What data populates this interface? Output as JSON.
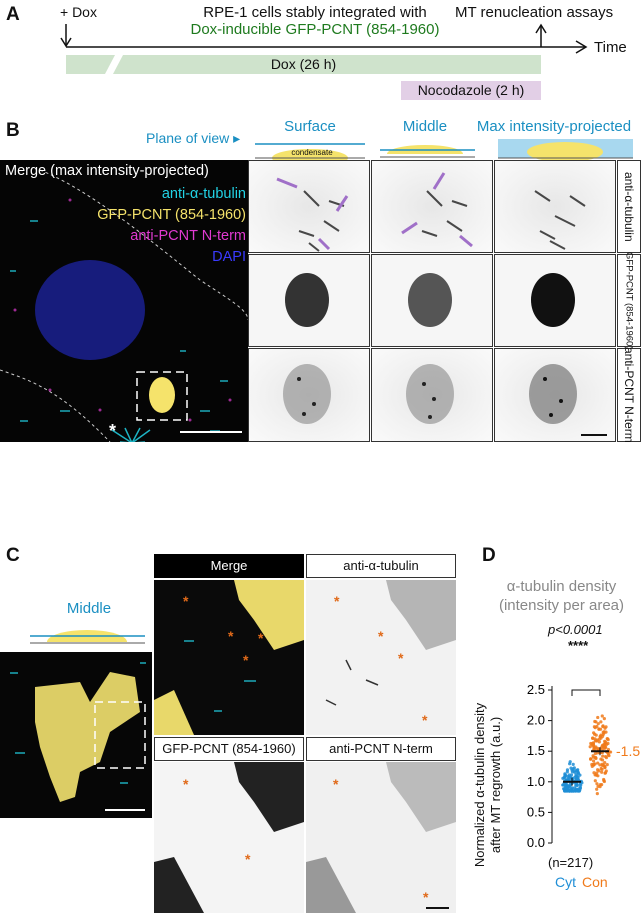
{
  "panelA": {
    "label": "A",
    "dox_plus": "+ Dox",
    "title_line1": "RPE-1 cells stably integrated with",
    "title_line2": "Dox-inducible GFP-PCNT (854-1960)",
    "mt_assays": "MT renucleation assays",
    "time": "Time",
    "dox_bar": "Dox (26 h)",
    "noc_bar": "Nocodazole (2 h)",
    "colors": {
      "dox_bar": "#cfe3cc",
      "noc_bar": "#e2cfe6"
    }
  },
  "panelB": {
    "label": "B",
    "plane_of_view": "Plane of view",
    "col_surface": "Surface",
    "col_middle": "Middle",
    "col_max": "Max intensity-projected",
    "condensate": "condensate",
    "merge_title": "Merge (max intensity-projected)",
    "legend_tubulin": "anti-α-tubulin",
    "legend_gfp": "GFP-PCNT (854-1960)",
    "legend_pcnt": "anti-PCNT N-term",
    "legend_dapi": "DAPI",
    "star": "*",
    "row_labels": [
      "anti-α-tubulin",
      "GFP-PCNT (854-1960)",
      "anti-PCNT N-term"
    ],
    "colors": {
      "cyan": "#22d3e6",
      "yellow": "#f5e36b",
      "magenta": "#e03ad1",
      "blue": "#3a3aff",
      "arrow": "#a070c8"
    }
  },
  "panelC": {
    "label": "C",
    "middle": "Middle",
    "merge": "Merge",
    "tubulin": "anti-α-tubulin",
    "gfp": "GFP-PCNT (854-1960)",
    "pcnt": "anti-PCNT N-term",
    "star": "*"
  },
  "panelD": {
    "label": "D",
    "title_line1": "α-tubulin density",
    "title_line2": "(intensity per area)",
    "pvalue": "p<0.0001",
    "stars": "****",
    "ylabel_line1": "Normalized α-tubulin density",
    "ylabel_line2": "after MT regrowth (a.u.)",
    "n": "(n=217)",
    "annot": "1.5",
    "colors": {
      "cyt": "#1f8ed6",
      "con": "#f07a1a"
    }
  },
  "chart_data": {
    "type": "scatter",
    "categories": [
      "Cyt",
      "Con"
    ],
    "ylim": [
      0,
      2.5
    ],
    "yticks": [
      0.0,
      0.5,
      1.0,
      1.5,
      2.0,
      2.5
    ],
    "series": [
      {
        "name": "Cyt",
        "mean": 1.0,
        "min": 0.85,
        "max": 1.6
      },
      {
        "name": "Con",
        "mean": 1.5,
        "min": 0.8,
        "max": 2.3
      }
    ]
  }
}
